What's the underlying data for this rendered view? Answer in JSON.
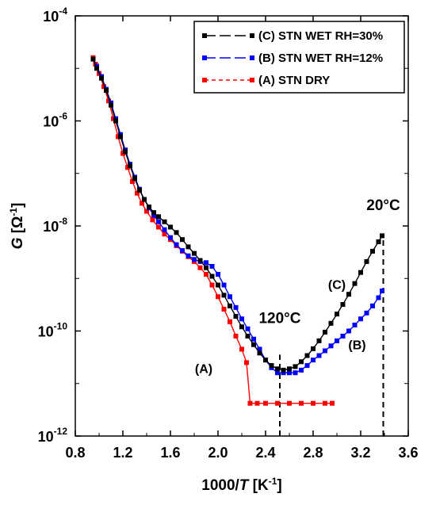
{
  "chart_data": {
    "type": "scatter",
    "xlabel": {
      "prefix": "1000/",
      "italic": "T",
      "unit_open": " [K",
      "unit_sup": "-1",
      "unit_close": "]"
    },
    "ylabel": {
      "italic": "G",
      "unit_open": " [Ω",
      "unit_sup": "-1",
      "unit_close": "]"
    },
    "xlim": [
      0.8,
      3.6
    ],
    "ylim_log10": [
      -12,
      -4
    ],
    "y_scale": "log",
    "x_ticks": [
      "0.8",
      "1.2",
      "1.6",
      "2.0",
      "2.4",
      "2.8",
      "3.2",
      "3.6"
    ],
    "x_tick_values": [
      0.8,
      1.2,
      1.6,
      2.0,
      2.4,
      2.8,
      3.2,
      3.6
    ],
    "y_ticks": [
      {
        "base": "10",
        "exp": "-4",
        "log": -4
      },
      {
        "base": "10",
        "exp": "-6",
        "log": -6
      },
      {
        "base": "10",
        "exp": "-8",
        "log": -8
      },
      {
        "base": "10",
        "exp": "-10",
        "log": -10
      },
      {
        "base": "10",
        "exp": "-12",
        "log": -12
      }
    ],
    "grid": false,
    "legend_position": "top-right",
    "series": [
      {
        "name": "(A) STN DRY",
        "color": "#ff0000",
        "line_style": "dashed",
        "points": [
          [
            0.95,
            1.6e-05
          ],
          [
            0.97,
            1.2e-05
          ],
          [
            1.0,
            8e-06
          ],
          [
            1.04,
            4.5e-06
          ],
          [
            1.08,
            2.4e-06
          ],
          [
            1.12,
            1.1e-06
          ],
          [
            1.16,
            5e-07
          ],
          [
            1.2,
            2.4e-07
          ],
          [
            1.24,
            1.3e-07
          ],
          [
            1.28,
            7e-08
          ],
          [
            1.32,
            4.2e-08
          ],
          [
            1.36,
            2.7e-08
          ],
          [
            1.4,
            1.9e-08
          ],
          [
            1.45,
            1.3e-08
          ],
          [
            1.5,
            9.5e-09
          ],
          [
            1.55,
            7e-09
          ],
          [
            1.6,
            5.5e-09
          ],
          [
            1.65,
            4.2e-09
          ],
          [
            1.7,
            3.3e-09
          ],
          [
            1.75,
            2.6e-09
          ],
          [
            1.8,
            2.1e-09
          ],
          [
            1.85,
            1.6e-09
          ],
          [
            1.9,
            1.2e-09
          ],
          [
            1.95,
            7.5e-10
          ],
          [
            2.0,
            4.5e-10
          ],
          [
            2.05,
            2.6e-10
          ],
          [
            2.1,
            1.5e-10
          ],
          [
            2.15,
            8e-11
          ],
          [
            2.2,
            4.5e-11
          ],
          [
            2.24,
            2.5e-11
          ],
          [
            2.27,
            4.2e-12
          ],
          [
            2.33,
            4.2e-12
          ],
          [
            2.4,
            4.2e-12
          ],
          [
            2.5,
            4.2e-12
          ],
          [
            2.6,
            4.2e-12
          ],
          [
            2.7,
            4.2e-12
          ],
          [
            2.8,
            4.2e-12
          ],
          [
            2.9,
            4.2e-12
          ],
          [
            2.96,
            4.2e-12
          ]
        ]
      },
      {
        "name": "(B) STN WET RH=12%",
        "color": "#0000ff",
        "line_style": "long-dash",
        "points": [
          [
            0.95,
            1.5e-05
          ],
          [
            0.98,
            1.1e-05
          ],
          [
            1.02,
            7e-06
          ],
          [
            1.06,
            4e-06
          ],
          [
            1.1,
            2.2e-06
          ],
          [
            1.14,
            1.1e-06
          ],
          [
            1.18,
            5.5e-07
          ],
          [
            1.22,
            2.8e-07
          ],
          [
            1.26,
            1.5e-07
          ],
          [
            1.3,
            8.5e-08
          ],
          [
            1.34,
            5e-08
          ],
          [
            1.38,
            3.2e-08
          ],
          [
            1.42,
            2.2e-08
          ],
          [
            1.46,
            1.6e-08
          ],
          [
            1.5,
            1.2e-08
          ],
          [
            1.55,
            8.5e-09
          ],
          [
            1.6,
            6e-09
          ],
          [
            1.65,
            4.4e-09
          ],
          [
            1.7,
            3.4e-09
          ],
          [
            1.75,
            2.7e-09
          ],
          [
            1.8,
            2.3e-09
          ],
          [
            1.85,
            2.1e-09
          ],
          [
            1.9,
            2e-09
          ],
          [
            1.95,
            1.7e-09
          ],
          [
            2.0,
            1.2e-09
          ],
          [
            2.05,
            7.5e-10
          ],
          [
            2.1,
            4.5e-10
          ],
          [
            2.15,
            2.8e-10
          ],
          [
            2.2,
            1.7e-10
          ],
          [
            2.25,
            1.1e-10
          ],
          [
            2.3,
            7e-11
          ],
          [
            2.35,
            4.5e-11
          ],
          [
            2.4,
            2.8e-11
          ],
          [
            2.45,
            2e-11
          ],
          [
            2.5,
            1.6e-11
          ],
          [
            2.55,
            1.6e-11
          ],
          [
            2.6,
            1.6e-11
          ],
          [
            2.65,
            1.6e-11
          ],
          [
            2.7,
            1.8e-11
          ],
          [
            2.75,
            2.2e-11
          ],
          [
            2.8,
            2.8e-11
          ],
          [
            2.85,
            3.4e-11
          ],
          [
            2.9,
            4.2e-11
          ],
          [
            2.95,
            5.2e-11
          ],
          [
            3.0,
            6.5e-11
          ],
          [
            3.05,
            8e-11
          ],
          [
            3.1,
            1e-10
          ],
          [
            3.15,
            1.3e-10
          ],
          [
            3.2,
            1.7e-10
          ],
          [
            3.25,
            2.2e-10
          ],
          [
            3.3,
            3e-10
          ],
          [
            3.35,
            4.3e-10
          ],
          [
            3.38,
            5.8e-10
          ]
        ]
      },
      {
        "name": "(C) STN WET RH=30%",
        "color": "#000000",
        "line_style": "long-dash",
        "points": [
          [
            0.95,
            1.5e-05
          ],
          [
            0.98,
            1e-05
          ],
          [
            1.02,
            6.5e-06
          ],
          [
            1.06,
            3.8e-06
          ],
          [
            1.1,
            2e-06
          ],
          [
            1.14,
            1e-06
          ],
          [
            1.18,
            5e-07
          ],
          [
            1.22,
            2.6e-07
          ],
          [
            1.26,
            1.4e-07
          ],
          [
            1.3,
            8e-08
          ],
          [
            1.34,
            4.8e-08
          ],
          [
            1.38,
            3.2e-08
          ],
          [
            1.42,
            2.3e-08
          ],
          [
            1.46,
            1.8e-08
          ],
          [
            1.5,
            1.5e-08
          ],
          [
            1.55,
            1.2e-08
          ],
          [
            1.6,
            9.5e-09
          ],
          [
            1.65,
            7.5e-09
          ],
          [
            1.7,
            5.5e-09
          ],
          [
            1.75,
            4e-09
          ],
          [
            1.8,
            3e-09
          ],
          [
            1.85,
            2.2e-09
          ],
          [
            1.9,
            1.6e-09
          ],
          [
            1.95,
            1.1e-09
          ],
          [
            2.0,
            7.5e-10
          ],
          [
            2.05,
            4.8e-10
          ],
          [
            2.1,
            3e-10
          ],
          [
            2.15,
            1.9e-10
          ],
          [
            2.2,
            1.2e-10
          ],
          [
            2.25,
            8e-11
          ],
          [
            2.3,
            5.5e-11
          ],
          [
            2.35,
            3.8e-11
          ],
          [
            2.4,
            2.8e-11
          ],
          [
            2.45,
            2.2e-11
          ],
          [
            2.5,
            1.9e-11
          ],
          [
            2.55,
            1.8e-11
          ],
          [
            2.6,
            1.9e-11
          ],
          [
            2.65,
            2.1e-11
          ],
          [
            2.7,
            2.6e-11
          ],
          [
            2.75,
            3.4e-11
          ],
          [
            2.8,
            4.6e-11
          ],
          [
            2.85,
            6.5e-11
          ],
          [
            2.9,
            9.5e-11
          ],
          [
            2.95,
            1.4e-10
          ],
          [
            3.0,
            2.1e-10
          ],
          [
            3.05,
            3.2e-10
          ],
          [
            3.1,
            5e-10
          ],
          [
            3.15,
            8e-10
          ],
          [
            3.2,
            1.3e-09
          ],
          [
            3.25,
            2.1e-09
          ],
          [
            3.3,
            3.3e-09
          ],
          [
            3.35,
            5e-09
          ],
          [
            3.38,
            6.5e-09
          ]
        ]
      }
    ],
    "legend_order": [
      2,
      1,
      0
    ],
    "annotations": [
      {
        "text": "20°C",
        "x": 3.39,
        "y_log": -7.7
      },
      {
        "text": "120°C",
        "x": 2.52,
        "y_log": -9.85
      },
      {
        "text": "(C)",
        "x": 3.0,
        "y_log": -9.2
      },
      {
        "text": "(B)",
        "x": 3.17,
        "y_log": -10.35
      },
      {
        "text": "(A)",
        "x": 1.88,
        "y_log": -10.8
      }
    ],
    "vlines": [
      {
        "x": 2.52,
        "from_log": -12,
        "to_log": -10.45
      },
      {
        "x": 3.39,
        "from_log": -12,
        "to_log": -8.2
      }
    ]
  }
}
